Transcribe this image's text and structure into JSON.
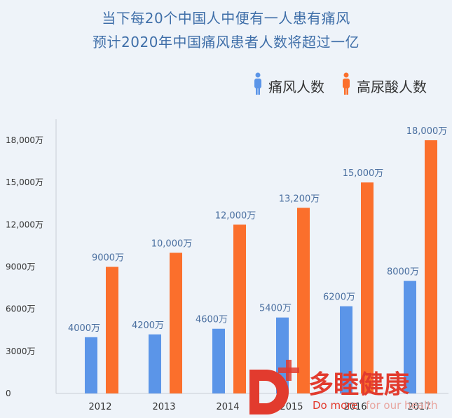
{
  "titles": {
    "line1": "当下每20个中国人中便有一人患有痛风",
    "line2": "预计2020年中国痛风患者人数将超过一亿"
  },
  "colors": {
    "series_gout": "#5b95e8",
    "series_hyperuricemia": "#fb6f2c",
    "axis": "#c8cdd5",
    "logo": "#e23b2e"
  },
  "logo": {
    "letter": "D",
    "cn": "多睦健康",
    "en1": "Do more",
    "en2": "for our health"
  },
  "chart_data": {
    "type": "bar",
    "categories": [
      "2012",
      "2013",
      "2014",
      "2015",
      "2016",
      "2017"
    ],
    "series": [
      {
        "name": "痛风人数",
        "values": [
          4000,
          4200,
          4600,
          5400,
          6200,
          8000
        ],
        "labels": [
          "4000万",
          "4200万",
          "4600万",
          "5400万",
          "6200万",
          "8000万"
        ]
      },
      {
        "name": "高尿酸人数",
        "values": [
          9000,
          10000,
          12000,
          13200,
          15000,
          18000
        ],
        "labels": [
          "9000万",
          "10,000万",
          "12,000万",
          "13,200万",
          "15,000万",
          "18,000万"
        ]
      }
    ],
    "ylim": [
      0,
      18000
    ],
    "yticks": [
      0,
      3000,
      6000,
      9000,
      12000,
      15000,
      18000
    ],
    "ytick_labels": [
      "0",
      "3000万",
      "6000万",
      "9000万",
      "12,000万",
      "15,000万",
      "18,000万"
    ],
    "legend_position": "top-right",
    "grid": false
  }
}
